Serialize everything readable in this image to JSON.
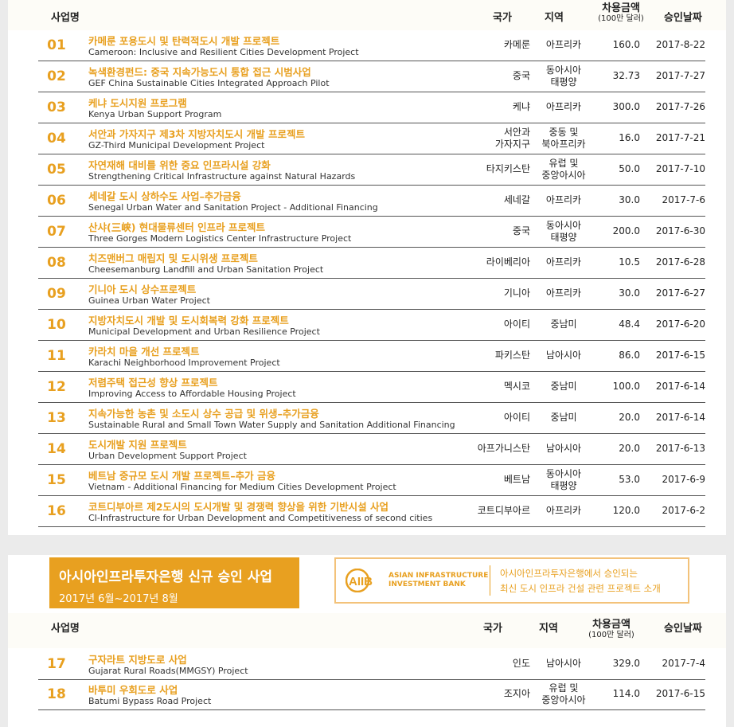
{
  "columns": {
    "project": "사업명",
    "country": "국가",
    "region": "지역",
    "amount": "차용금액",
    "amount_unit": "(100만 달러)",
    "date": "승인날짜"
  },
  "table1": [
    {
      "num": "01",
      "kr": "카메룬 포용도시 및 탄력적도시 개발 프로젝트",
      "en": "Cameroon: Inclusive and Resilient Cities Development Project",
      "country": [
        "카메룬"
      ],
      "region": [
        "아프리카"
      ],
      "amount": "160.0",
      "date": "2017-8-22"
    },
    {
      "num": "02",
      "kr": "녹색환경펀드: 중국 지속가능도시 통합 접근 시범사업",
      "en": "GEF China Sustainable Cities Integrated Approach Pilot",
      "country": [
        "중국"
      ],
      "region": [
        "동아시아",
        "태평양"
      ],
      "amount": "32.73",
      "date": "2017-7-27"
    },
    {
      "num": "03",
      "kr": "케냐 도시지원 프로그램",
      "en": "Kenya Urban Support Program",
      "country": [
        "케냐"
      ],
      "region": [
        "아프리카"
      ],
      "amount": "300.0",
      "date": "2017-7-26"
    },
    {
      "num": "04",
      "kr": "서안과 가자지구 제3차 지방자치도시 개발 프로젝트",
      "en": "GZ-Third Municipal Development Project",
      "country": [
        "서안과",
        "가자지구"
      ],
      "region": [
        "중동 및",
        "북아프리카"
      ],
      "amount": "16.0",
      "date": "2017-7-21"
    },
    {
      "num": "05",
      "kr": "자연재해 대비를 위한 중요 인프라시설 강화",
      "en": "Strengthening Critical Infrastructure against Natural Hazards",
      "country": [
        "타지키스탄"
      ],
      "region": [
        "유럽 및",
        "중앙아시아"
      ],
      "amount": "50.0",
      "date": "2017-7-10"
    },
    {
      "num": "06",
      "kr": "세네갈 도시 상하수도 사업–추가금융",
      "en": "Senegal Urban Water and Sanitation Project - Additional Financing",
      "country": [
        "세네갈"
      ],
      "region": [
        "아프리카"
      ],
      "amount": "30.0",
      "date": "2017-7-6"
    },
    {
      "num": "07",
      "kr": "산샤(三峡) 현대물류센터 인프라 프로젝트",
      "en": "Three Gorges Modern Logistics Center Infrastructure Project",
      "country": [
        "중국"
      ],
      "region": [
        "동아시아",
        "태평양"
      ],
      "amount": "200.0",
      "date": "2017-6-30"
    },
    {
      "num": "08",
      "kr": "치즈맨버그 매립지 및 도시위생 프로젝트",
      "en": "Cheesemanburg Landfill and Urban Sanitation Project",
      "country": [
        "라이베리아"
      ],
      "region": [
        "아프리카"
      ],
      "amount": "10.5",
      "date": "2017-6-28"
    },
    {
      "num": "09",
      "kr": "기니아 도시 상수프로젝트",
      "en": "Guinea Urban Water Project",
      "country": [
        "기니아"
      ],
      "region": [
        "아프리카"
      ],
      "amount": "30.0",
      "date": "2017-6-27"
    },
    {
      "num": "10",
      "kr": "지방자치도시 개발 및 도시회복력 강화 프로젝트",
      "en": "Municipal Development and Urban Resilience Project",
      "country": [
        "아이티"
      ],
      "region": [
        "중남미"
      ],
      "amount": "48.4",
      "date": "2017-6-20"
    },
    {
      "num": "11",
      "kr": "카라치 마을 개선 프로젝트",
      "en": "Karachi Neighborhood Improvement Project",
      "country": [
        "파키스탄"
      ],
      "region": [
        "남아시아"
      ],
      "amount": "86.0",
      "date": "2017-6-15"
    },
    {
      "num": "12",
      "kr": "저렴주택 접근성 향상 프로젝트",
      "en": "Improving Access to Affordable Housing Project",
      "country": [
        "멕시코"
      ],
      "region": [
        "중남미"
      ],
      "amount": "100.0",
      "date": "2017-6-14"
    },
    {
      "num": "13",
      "kr": "지속가능한 농촌 및 소도시 상수 공급 및 위생–추가금융",
      "en": "Sustainable Rural and Small Town Water Supply and Sanitation Additional Financing",
      "country": [
        "아이티"
      ],
      "region": [
        "중남미"
      ],
      "amount": "20.0",
      "date": "2017-6-14"
    },
    {
      "num": "14",
      "kr": "도시개발 지원 프로젝트",
      "en": "Urban Development Support Project",
      "country": [
        "아프가니스탄"
      ],
      "region": [
        "남아시아"
      ],
      "amount": "20.0",
      "date": "2017-6-13"
    },
    {
      "num": "15",
      "kr": "베트남 중규모 도시 개발 프로젝트–추가 금융",
      "en": "Vietnam - Additional Financing for Medium Cities Development Project",
      "country": [
        "베트남"
      ],
      "region": [
        "동아시아",
        "태평양"
      ],
      "amount": "53.0",
      "date": "2017-6-9"
    },
    {
      "num": "16",
      "kr": "코트디부아르 제2도시의 도시개발 및 경쟁력 향상을 위한 기반시설 사업",
      "en": "CI-Infrastructure for Urban Development and Competitiveness of second cities",
      "country": [
        "코트디부아르"
      ],
      "region": [
        "아프리카"
      ],
      "amount": "120.0",
      "date": "2017-6-2"
    }
  ],
  "banner": {
    "title": "아시아인프라투자은행 신규 승인 사업",
    "period": "2017년 6월~2017년 8월"
  },
  "aiib": {
    "logo_text": "AIIB",
    "bank_line1": "ASIAN INFRASTRUCTURE",
    "bank_line2": "INVESTMENT BANK",
    "desc_line1": "아시아인프라투자은행에서 승인되는",
    "desc_line2": "최신 도시 인프라 건설 관련 프로젝트 소개"
  },
  "table2": [
    {
      "num": "17",
      "kr": "구자라트 지방도로 사업",
      "en": "Gujarat Rural Roads(MMGSY) Project",
      "country": [
        "인도"
      ],
      "region": [
        "남아시아"
      ],
      "amount": "329.0",
      "date": "2017-7-4"
    },
    {
      "num": "18",
      "kr": "바투미 우회도로 사업",
      "en": "Batumi Bypass Road Project",
      "country": [
        "조지아"
      ],
      "region": [
        "유럽 및",
        "중앙아시아"
      ],
      "amount": "114.0",
      "date": "2017-6-15"
    }
  ],
  "colors": {
    "accent": "#e8a020",
    "background": "#ebebeb"
  }
}
